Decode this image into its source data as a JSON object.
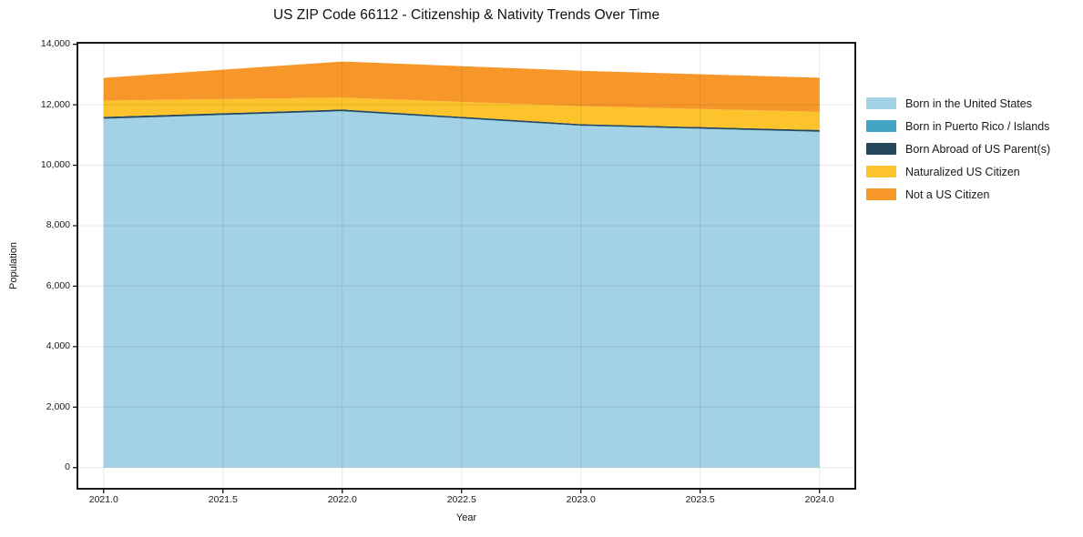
{
  "title": "US ZIP Code 66112 - Citizenship & Nativity Trends Over Time",
  "chart_data": {
    "type": "area",
    "stacked": true,
    "title": "US ZIP Code 66112 - Citizenship & Nativity Trends Over Time",
    "xlabel": "Year",
    "ylabel": "Population",
    "x": [
      2021,
      2022,
      2023,
      2024
    ],
    "xlim": [
      2020.89,
      2024.15
    ],
    "ylim": [
      -700,
      14050
    ],
    "grid": true,
    "legend_position": "right",
    "xticks": [
      "2021.0",
      "2021.5",
      "2022.0",
      "2022.5",
      "2023.0",
      "2023.5",
      "2024.0"
    ],
    "xtick_values": [
      2021,
      2021.5,
      2022,
      2022.5,
      2023,
      2023.5,
      2024
    ],
    "yticks": [
      "0",
      "2,000",
      "4,000",
      "6,000",
      "8,000",
      "10,000",
      "12,000",
      "14,000"
    ],
    "ytick_values": [
      0,
      2000,
      4000,
      6000,
      8000,
      10000,
      12000,
      14000
    ],
    "series": [
      {
        "name": "Born in the United States",
        "color": "#a3d1e6",
        "values": [
          11530,
          11780,
          11300,
          11100
        ]
      },
      {
        "name": "Born in Puerto Rico / Islands",
        "color": "#41a6c4",
        "values": [
          10,
          10,
          10,
          10
        ]
      },
      {
        "name": "Born Abroad of US Parent(s)",
        "color": "#26485c",
        "values": [
          60,
          55,
          50,
          55
        ]
      },
      {
        "name": "Naturalized US Citizen",
        "color": "#fcc32d",
        "values": [
          540,
          390,
          595,
          600
        ]
      },
      {
        "name": "Not a US Citizen",
        "color": "#f7972a",
        "values": [
          750,
          1195,
          1170,
          1130
        ]
      }
    ],
    "totals_by_year": [
      12890,
      13430,
      13125,
      12895
    ],
    "colors": {
      "background": "#ffffff",
      "spine": "#000000",
      "tick_text": "#1a1a1a",
      "gridline": "#e8e8e8"
    }
  }
}
